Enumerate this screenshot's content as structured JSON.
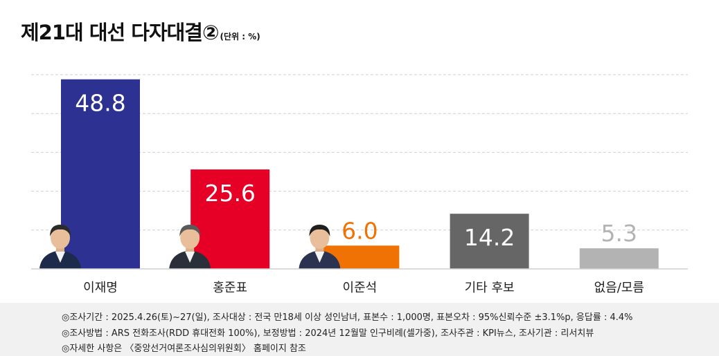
{
  "title": "제21대 대선 다자대결②",
  "unit_label": "(단위 : %)",
  "chart_data": {
    "type": "bar",
    "categories": [
      "이재명",
      "홍준표",
      "이준석",
      "기타 후보",
      "없음/모름"
    ],
    "values": [
      48.8,
      25.6,
      6.0,
      14.2,
      5.3
    ],
    "value_labels": [
      "48.8",
      "25.6",
      "6.0",
      "14.2",
      "5.3"
    ],
    "colors": [
      "#2d3192",
      "#e60026",
      "#f07204",
      "#666666",
      "#b3b3b3"
    ],
    "label_colors": [
      "#ffffff",
      "#ffffff",
      "#f07204",
      "#ffffff",
      "#b3b3b3"
    ],
    "label_inside": [
      true,
      true,
      false,
      true,
      false
    ],
    "ylim": [
      0,
      50
    ],
    "grid": true,
    "legend": "none"
  },
  "footnotes": [
    "◎조사기간 : 2025.4.26(토)~27(일), 조사대상 : 전국 만18세 이상 성인남녀, 표본수 : 1,000명, 표본오차 : 95%신뢰수준 ±3.1%p, 응답률 : 4.4%",
    "◎조사방법 : ARS 전화조사(RDD 휴대전화 100%), 보정방법 : 2024년 12월말 인구비례(셀가중), 조사주관 : KPI뉴스, 조사기관 : 리서치뷰",
    "◎자세한 사항은 〈중앙선거여론조사심의위원회〉 홈페이지 참조"
  ]
}
